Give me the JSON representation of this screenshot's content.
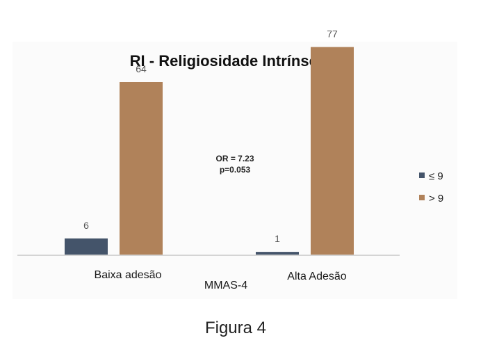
{
  "chart_data": {
    "type": "bar",
    "title": "RI - Religiosidade Intrínseca",
    "xlabel": "MMAS-4",
    "ylabel": "",
    "categories": [
      "Baixa adesão",
      "Alta Adesão"
    ],
    "series": [
      {
        "name": "≤ 9",
        "values": [
          6,
          1
        ],
        "color": "#44546a"
      },
      {
        "name": "> 9",
        "values": [
          64,
          77
        ],
        "color": "#b0825a"
      }
    ],
    "ylim": [
      0,
      80
    ],
    "grid": false,
    "legend_position": "right",
    "annotations": [
      "OR = 7.23",
      "p=0.053"
    ]
  },
  "caption": "Figura 4"
}
